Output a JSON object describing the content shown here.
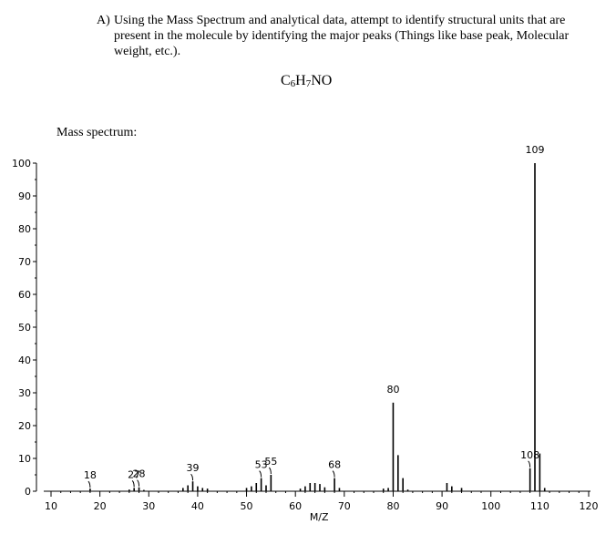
{
  "question": {
    "letter": "A)",
    "text": "Using the Mass Spectrum and analytical data, attempt to identify structural units that are present in the molecule by identifying the major peaks (Things like base peak, Molecular weight, etc.)."
  },
  "formula": {
    "c": "C",
    "c_n": "6",
    "h": "H",
    "h_n": "7",
    "rest": "NO"
  },
  "spectrum_label": "Mass spectrum:",
  "chart_data": {
    "type": "bar",
    "xlabel": "M/Z",
    "ylabel": "",
    "xlim": [
      10,
      120
    ],
    "ylim": [
      0,
      100
    ],
    "x_ticks": [
      10,
      20,
      30,
      40,
      50,
      60,
      70,
      80,
      90,
      100,
      110,
      120
    ],
    "y_ticks": [
      0,
      10,
      20,
      30,
      40,
      50,
      60,
      70,
      80,
      90,
      100
    ],
    "peaks": [
      {
        "mz": 18,
        "intensity": 0.8
      },
      {
        "mz": 26,
        "intensity": 0.5
      },
      {
        "mz": 27,
        "intensity": 1.0
      },
      {
        "mz": 28,
        "intensity": 1.2
      },
      {
        "mz": 29,
        "intensity": 0.4
      },
      {
        "mz": 37,
        "intensity": 1.0
      },
      {
        "mz": 38,
        "intensity": 1.8
      },
      {
        "mz": 39,
        "intensity": 3.0
      },
      {
        "mz": 40,
        "intensity": 1.5
      },
      {
        "mz": 41,
        "intensity": 1.0
      },
      {
        "mz": 42,
        "intensity": 0.8
      },
      {
        "mz": 50,
        "intensity": 1.0
      },
      {
        "mz": 51,
        "intensity": 1.5
      },
      {
        "mz": 52,
        "intensity": 2.5
      },
      {
        "mz": 53,
        "intensity": 4.0
      },
      {
        "mz": 54,
        "intensity": 1.8
      },
      {
        "mz": 55,
        "intensity": 5.0
      },
      {
        "mz": 61,
        "intensity": 0.8
      },
      {
        "mz": 62,
        "intensity": 1.5
      },
      {
        "mz": 63,
        "intensity": 2.5
      },
      {
        "mz": 64,
        "intensity": 2.5
      },
      {
        "mz": 65,
        "intensity": 2.2
      },
      {
        "mz": 66,
        "intensity": 1.2
      },
      {
        "mz": 68,
        "intensity": 4.0
      },
      {
        "mz": 69,
        "intensity": 1.0
      },
      {
        "mz": 78,
        "intensity": 0.8
      },
      {
        "mz": 79,
        "intensity": 1.0
      },
      {
        "mz": 80,
        "intensity": 27.0
      },
      {
        "mz": 81,
        "intensity": 11.0
      },
      {
        "mz": 82,
        "intensity": 4.0
      },
      {
        "mz": 83,
        "intensity": 0.5
      },
      {
        "mz": 91,
        "intensity": 2.5
      },
      {
        "mz": 92,
        "intensity": 1.5
      },
      {
        "mz": 94,
        "intensity": 1.0
      },
      {
        "mz": 108,
        "intensity": 7.0
      },
      {
        "mz": 109,
        "intensity": 100.0
      },
      {
        "mz": 110,
        "intensity": 11.5
      },
      {
        "mz": 111,
        "intensity": 1.0
      }
    ],
    "peak_labels": [
      {
        "text": "18",
        "mz": 18,
        "intensity": 0.8,
        "hook": true
      },
      {
        "text": "27",
        "mz": 27,
        "intensity": 1.0,
        "hook": true
      },
      {
        "text": "28",
        "mz": 28,
        "intensity": 1.2,
        "hook": true
      },
      {
        "text": "39",
        "mz": 39,
        "intensity": 3.0,
        "hook": true
      },
      {
        "text": "53",
        "mz": 53,
        "intensity": 4.0,
        "hook": true
      },
      {
        "text": "55",
        "mz": 55,
        "intensity": 5.0,
        "hook": true
      },
      {
        "text": "68",
        "mz": 68,
        "intensity": 4.0,
        "hook": true
      },
      {
        "text": "80",
        "mz": 80,
        "intensity": 27.0,
        "hook": false
      },
      {
        "text": "108",
        "mz": 108,
        "intensity": 7.0,
        "hook": true
      },
      {
        "text": "109",
        "mz": 109,
        "intensity": 100.0,
        "hook": false
      }
    ]
  }
}
